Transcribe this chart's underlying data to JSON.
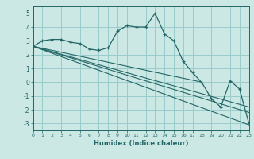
{
  "xlabel": "Humidex (Indice chaleur)",
  "bg_color": "#cce8e4",
  "line_color": "#226666",
  "grid_color": "#99cccc",
  "xlim": [
    0,
    23
  ],
  "ylim": [
    -3.5,
    5.5
  ],
  "xticks": [
    0,
    1,
    2,
    3,
    4,
    5,
    6,
    7,
    8,
    9,
    10,
    11,
    12,
    13,
    14,
    15,
    16,
    17,
    18,
    19,
    20,
    21,
    22,
    23
  ],
  "yticks": [
    -3,
    -2,
    -1,
    0,
    1,
    2,
    3,
    4,
    5
  ],
  "main_x": [
    0,
    1,
    2,
    3,
    4,
    5,
    6,
    7,
    8,
    9,
    10,
    11,
    12,
    13,
    14,
    15,
    16,
    17,
    18,
    19,
    20,
    21,
    22,
    23
  ],
  "main_y": [
    2.6,
    3.0,
    3.1,
    3.1,
    2.9,
    2.8,
    2.4,
    2.3,
    2.5,
    3.7,
    4.1,
    4.0,
    4.0,
    5.0,
    3.5,
    3.0,
    1.5,
    0.7,
    -0.05,
    -1.2,
    -1.8,
    0.1,
    -0.5,
    -3.0
  ],
  "trend1_x": [
    0,
    23
  ],
  "trend1_y": [
    2.6,
    -3.1
  ],
  "trend2_x": [
    0,
    23
  ],
  "trend2_y": [
    2.6,
    -2.2
  ],
  "trend3_x": [
    0,
    23
  ],
  "trend3_y": [
    2.6,
    -1.8
  ],
  "trend4_x": [
    0,
    18
  ],
  "trend4_y": [
    2.6,
    0.0
  ]
}
